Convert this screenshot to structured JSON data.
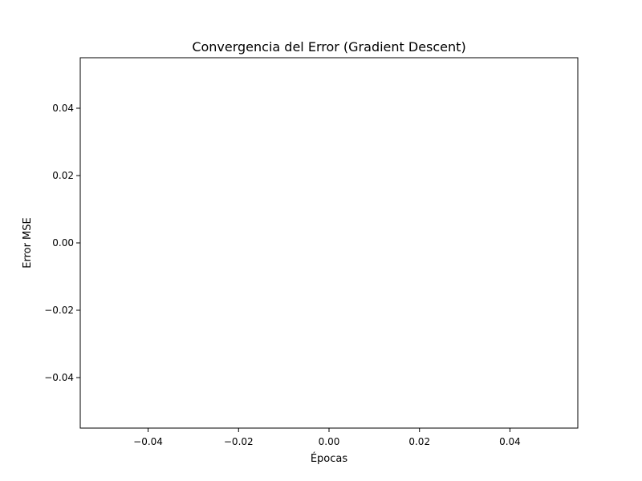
{
  "chart_data": {
    "type": "line",
    "title": "Convergencia del Error (Gradient Descent)",
    "xlabel": "Épocas",
    "ylabel": "Error MSE",
    "xlim": [
      -0.055,
      0.055
    ],
    "ylim": [
      -0.055,
      0.055
    ],
    "x_ticks": [
      -0.04,
      -0.02,
      0.0,
      0.02,
      0.04
    ],
    "x_tick_labels": [
      "−0.04",
      "−0.02",
      "0.00",
      "0.02",
      "0.04"
    ],
    "y_ticks": [
      -0.04,
      -0.02,
      0.0,
      0.02,
      0.04
    ],
    "y_tick_labels": [
      "−0.04",
      "−0.02",
      "0.00",
      "0.02",
      "0.04"
    ],
    "grid": false,
    "legend": "none",
    "series": [
      {
        "x": [],
        "y": [],
        "color": "#1f77b4"
      }
    ]
  }
}
